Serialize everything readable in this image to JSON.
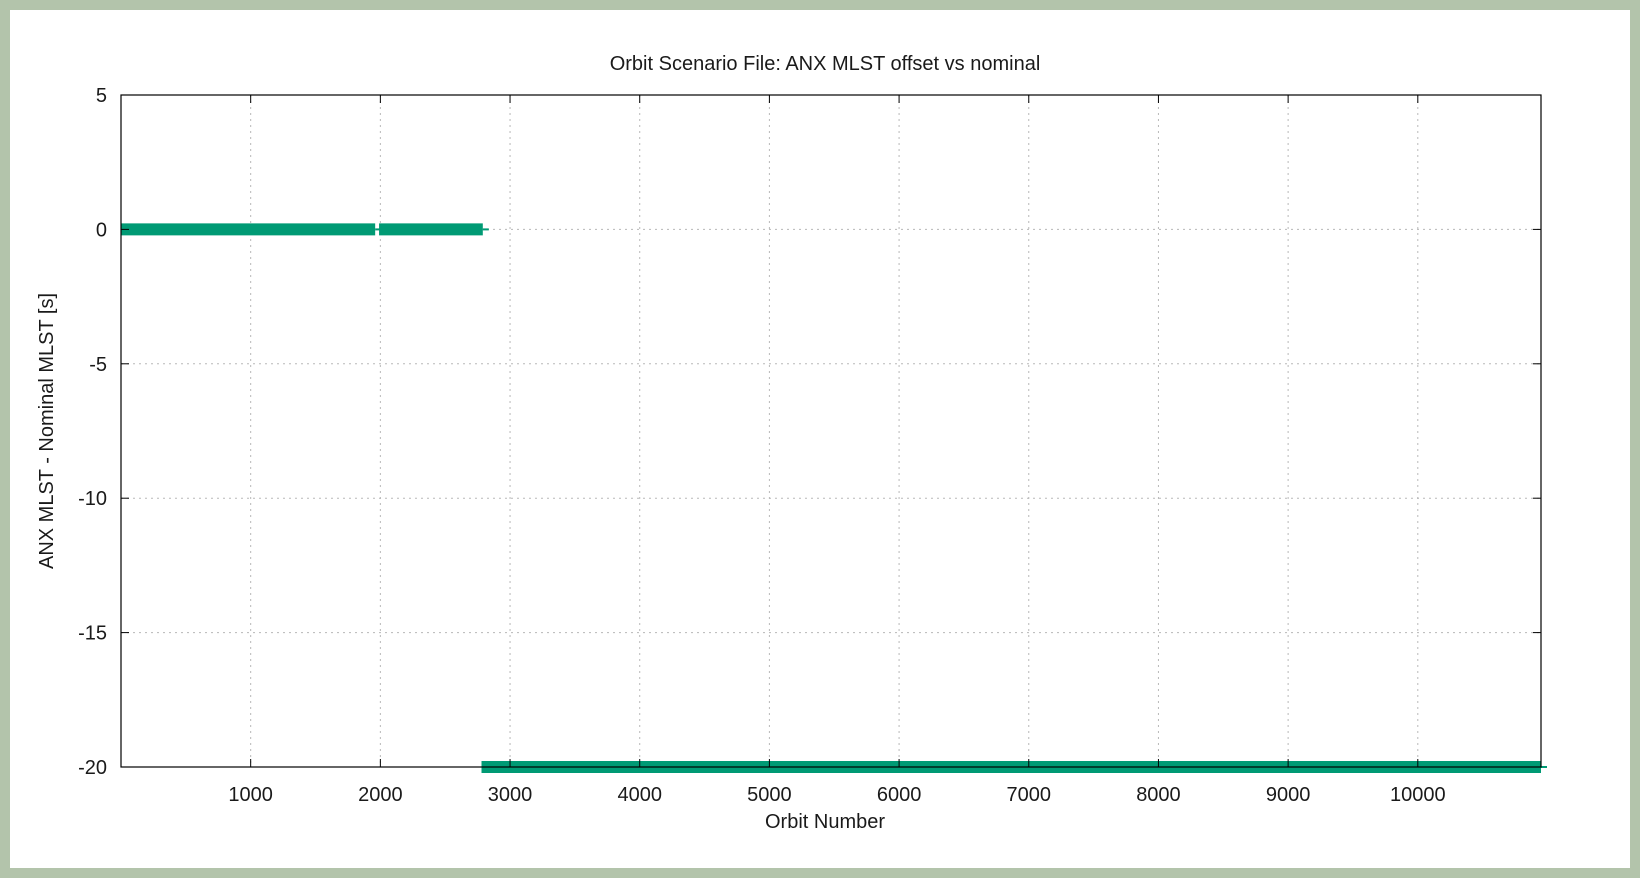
{
  "chart_data": {
    "type": "line",
    "title": "Orbit Scenario File: ANX MLST offset vs nominal",
    "xlabel": "Orbit Number",
    "ylabel": "ANX MLST - Nominal MLST [s]",
    "xlim": [
      0,
      10950
    ],
    "ylim": [
      -20,
      5
    ],
    "xticks": [
      1000,
      2000,
      3000,
      4000,
      5000,
      6000,
      7000,
      8000,
      9000,
      10000
    ],
    "yticks": [
      5,
      0,
      -5,
      -10,
      -15,
      -20
    ],
    "grid": true,
    "legend": "none",
    "series": [
      {
        "color": "#009a74",
        "segments": [
          {
            "x": [
              0,
              1960
            ],
            "y": [
              0,
              0
            ]
          },
          {
            "x": [
              1990,
              2790
            ],
            "y": [
              0,
              0
            ]
          },
          {
            "x": [
              2780,
              10950
            ],
            "y": [
              -20,
              -20
            ]
          }
        ]
      }
    ]
  }
}
